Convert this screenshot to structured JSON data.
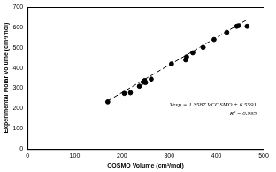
{
  "chart_data": {
    "type": "scatter",
    "x_label": "COSMO Volume (cm³/mol)",
    "y_label": "Experimental Molar Volume (cm³/mol)",
    "annotations": [
      "Vexp = 1.3587 VCOSMO + 6.5591",
      "R² = 0.995"
    ],
    "series": [
      {
        "type": "scatter",
        "marker": "circle",
        "color": "#000000",
        "x": [
          170,
          205,
          218,
          237,
          245,
          248,
          250,
          262,
          305,
          335,
          337,
          350,
          372,
          395,
          422,
          443,
          447,
          465
        ],
        "values": [
          233,
          275,
          278,
          310,
          330,
          338,
          328,
          345,
          420,
          440,
          455,
          475,
          502,
          540,
          575,
          605,
          608,
          605
        ]
      },
      {
        "type": "line",
        "line_style": "dashed",
        "color": "#000000",
        "x": [
          170,
          465
        ],
        "values": [
          238,
          638
        ]
      }
    ],
    "xlim": [
      0,
      500
    ],
    "xticks": [
      0,
      100,
      200,
      300,
      400,
      500
    ],
    "ylim": [
      0,
      700
    ],
    "yticks": [
      0,
      100,
      200,
      300,
      400,
      500,
      600,
      700
    ],
    "grid": false
  }
}
